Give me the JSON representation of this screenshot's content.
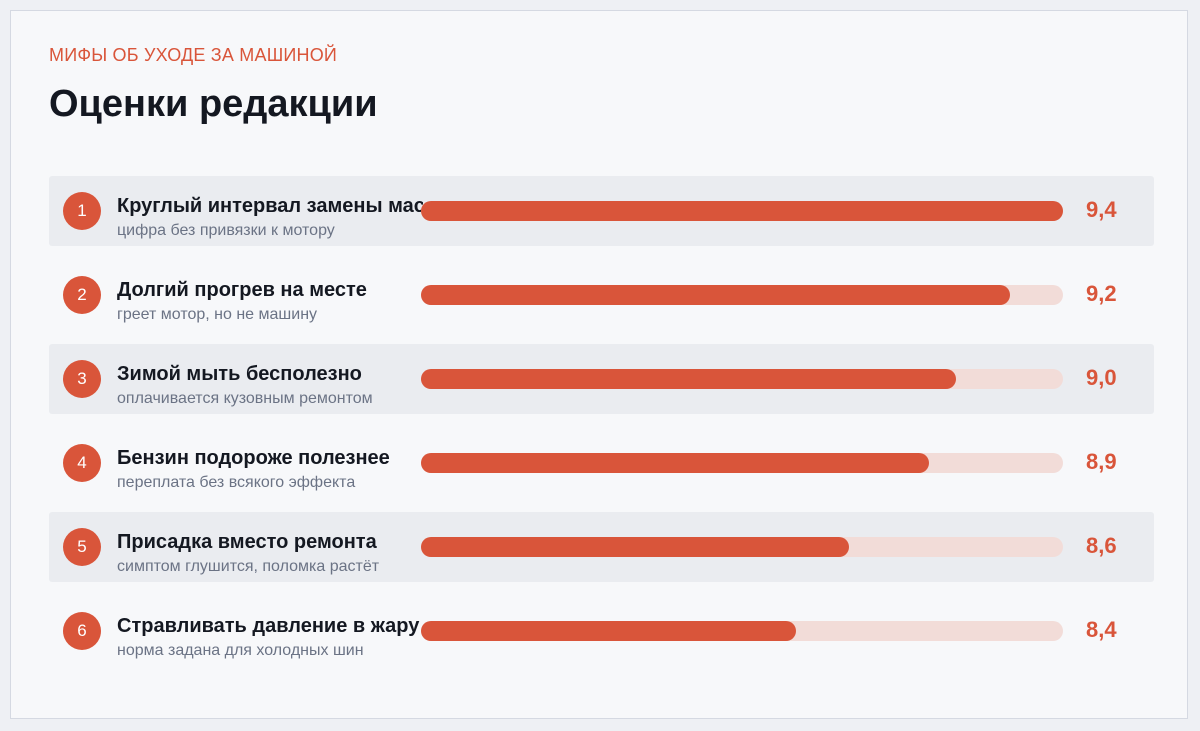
{
  "header": {
    "kicker": "МИФЫ ОБ УХОДЕ ЗА МАШИНОЙ",
    "title": "Оценки редакции"
  },
  "colors": {
    "accent": "#d9553a",
    "track": "#f2dcd8",
    "row_shade": "#eaecf0"
  },
  "chart_data": {
    "type": "bar",
    "orientation": "horizontal",
    "title": "Оценки редакции",
    "categories": [
      "Круглый интервал замены масла",
      "Долгий прогрев на месте",
      "Зимой мыть бесполезно",
      "Бензин подороже полезнее",
      "Присадка вместо ремонта",
      "Стравливать давление в жару"
    ],
    "values": [
      9.4,
      9.2,
      9.0,
      8.9,
      8.6,
      8.4
    ],
    "xlim": [
      7.0,
      9.4
    ],
    "rows": [
      {
        "rank": "1",
        "label": "Круглый интервал замены масла",
        "sub": "цифра без привязки к мотору",
        "value": 9.4,
        "value_label": "9,4"
      },
      {
        "rank": "2",
        "label": "Долгий прогрев на месте",
        "sub": "греет мотор, но не машину",
        "value": 9.2,
        "value_label": "9,2"
      },
      {
        "rank": "3",
        "label": "Зимой мыть бесполезно",
        "sub": "оплачивается кузовным ремонтом",
        "value": 9.0,
        "value_label": "9,0"
      },
      {
        "rank": "4",
        "label": "Бензин подороже полезнее",
        "sub": "переплата без всякого эффекта",
        "value": 8.9,
        "value_label": "8,9"
      },
      {
        "rank": "5",
        "label": "Присадка вместо ремонта",
        "sub": "симптом глушится, поломка растёт",
        "value": 8.6,
        "value_label": "8,6"
      },
      {
        "rank": "6",
        "label": "Стравливать давление в жару",
        "sub": "норма задана для холодных шин",
        "value": 8.4,
        "value_label": "8,4"
      }
    ]
  }
}
